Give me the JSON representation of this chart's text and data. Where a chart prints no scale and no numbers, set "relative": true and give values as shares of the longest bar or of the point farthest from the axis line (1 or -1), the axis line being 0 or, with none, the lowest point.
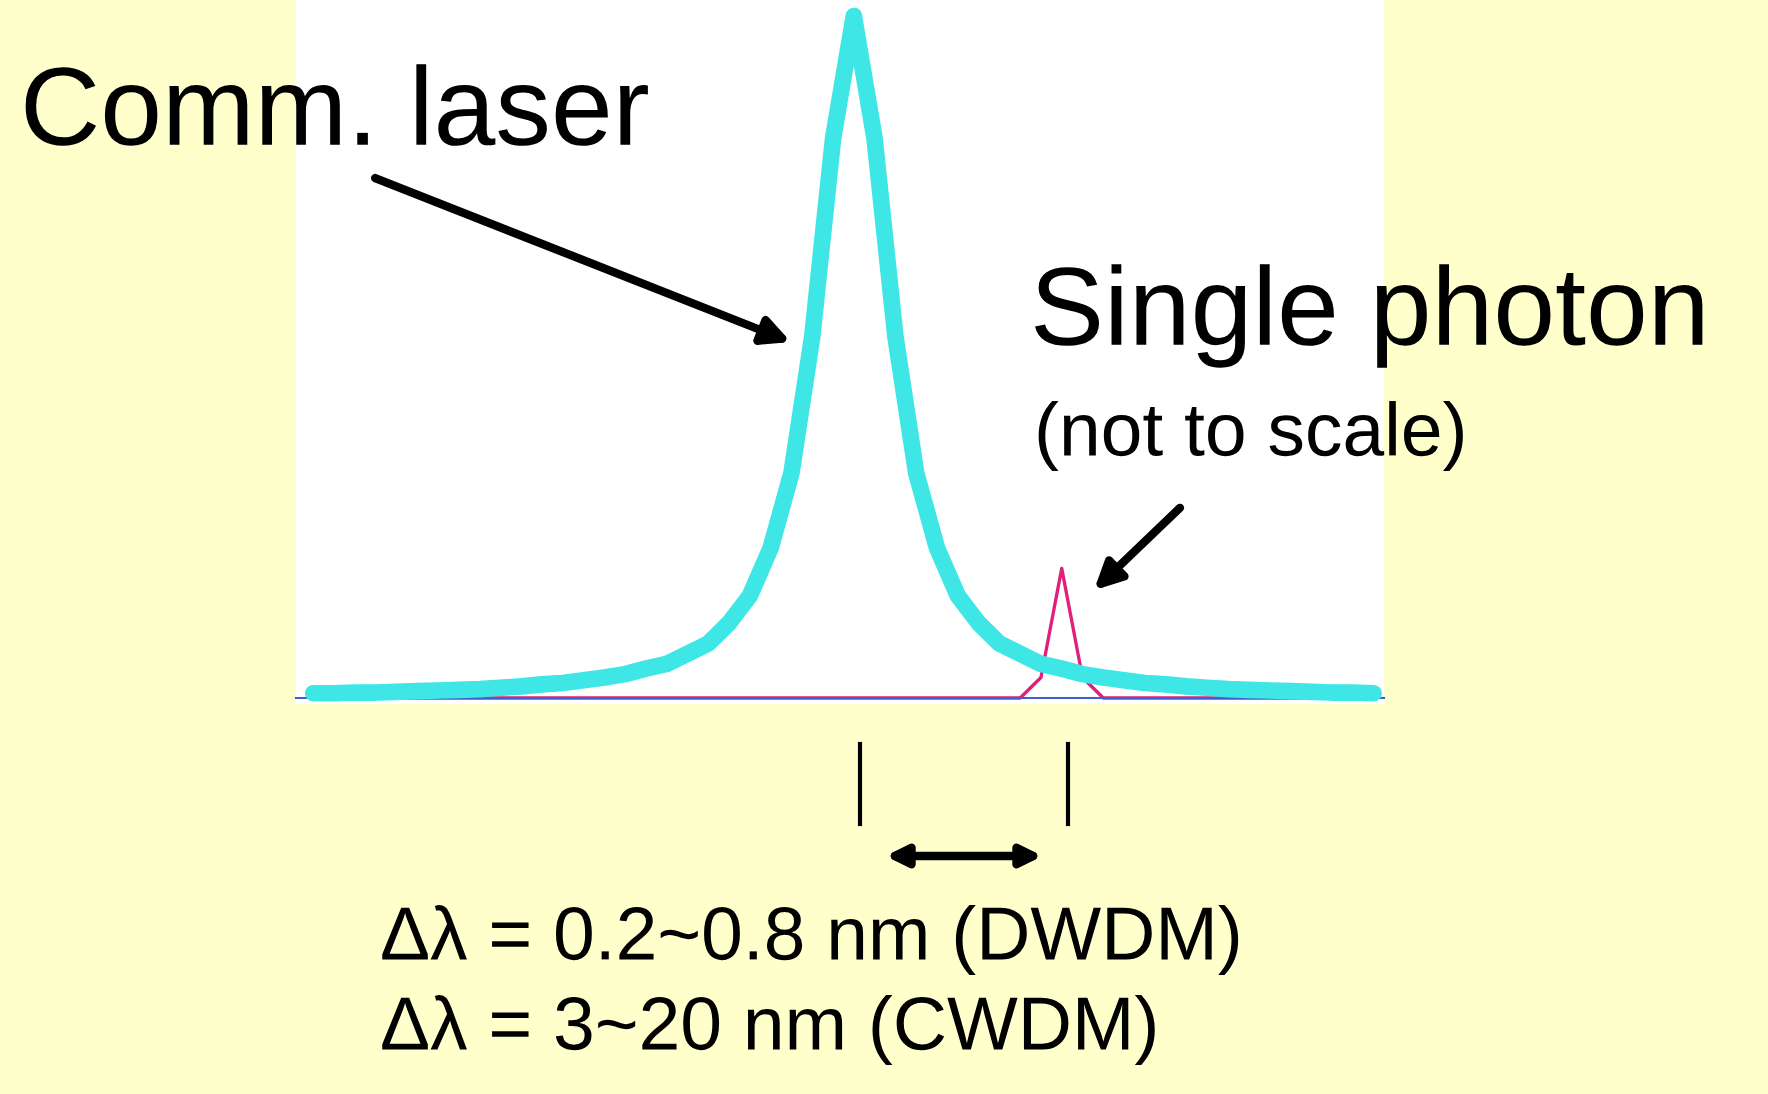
{
  "chart_data": {
    "type": "line",
    "relative": true,
    "categories": [
      null,
      null,
      null,
      null,
      null,
      null,
      null,
      null,
      null,
      null,
      null,
      null,
      null,
      null,
      null,
      null,
      null,
      null,
      null,
      null,
      null,
      null,
      null,
      null,
      null,
      null,
      null,
      null,
      null,
      null,
      null,
      null,
      null,
      null,
      null,
      null,
      null,
      null,
      null,
      null,
      null,
      null,
      null,
      null,
      null,
      null,
      null,
      null,
      null,
      null,
      null,
      null
    ],
    "series": [
      {
        "color": "#3ee6e6",
        "values": [
          0.007,
          0.007,
          0.008,
          0.008,
          0.009,
          0.01,
          0.011,
          0.012,
          0.013,
          0.015,
          0.017,
          0.02,
          0.022,
          0.026,
          0.03,
          0.035,
          0.043,
          0.05,
          0.065,
          0.08,
          0.11,
          0.15,
          0.22,
          0.33,
          0.53,
          0.82,
          1.0,
          0.82,
          0.53,
          0.33,
          0.22,
          0.15,
          0.11,
          0.08,
          0.065,
          0.05,
          0.043,
          0.035,
          0.03,
          0.026,
          0.022,
          0.02,
          0.017,
          0.015,
          0.013,
          0.012,
          0.011,
          0.01,
          0.009,
          0.008,
          0.008,
          0.007
        ]
      },
      {
        "color": "#e0207a",
        "values": [
          null,
          null,
          null,
          null,
          0,
          0,
          0,
          0,
          0,
          0,
          0,
          0,
          0,
          0,
          0,
          0,
          0,
          0,
          0,
          0,
          0,
          0,
          0,
          0,
          0,
          0,
          0,
          0,
          0,
          0,
          0,
          0,
          0,
          0,
          0,
          0.03,
          0.19,
          0.03,
          0,
          0,
          0,
          0,
          0,
          0,
          0,
          0,
          0,
          0,
          0,
          0,
          null,
          null
        ]
      }
    ],
    "annotations": [
      "Comm. laser",
      "Single photon",
      "(not to scale)",
      "Δλ = 0.2~0.8 nm (DWDM)",
      "Δλ = 3~20 nm (CWDM)"
    ]
  }
}
